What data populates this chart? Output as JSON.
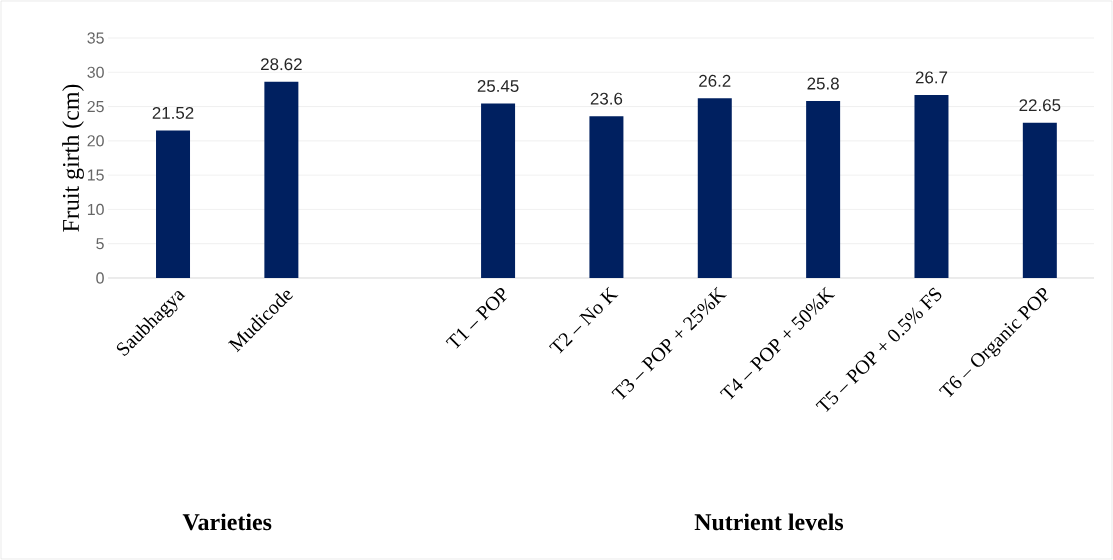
{
  "chart_data": {
    "type": "bar",
    "ylabel": "Fruit girth (cm)",
    "categories": [
      "Saubhagya",
      "Mudicode",
      null,
      "T1 – POP",
      "T2 – No K",
      "T3 – POP + 25%K",
      "T4 – POP + 50%K",
      "T5 – POP + 0.5% FS",
      "T6 – Organic POP"
    ],
    "values": [
      21.52,
      28.62,
      null,
      25.45,
      23.6,
      26.2,
      25.8,
      26.7,
      22.65
    ],
    "color": "#002060",
    "ylim": [
      0,
      35
    ],
    "yticks": [
      0,
      5,
      10,
      15,
      20,
      25,
      30,
      35
    ],
    "grid": "y",
    "data_labels": true,
    "annotations": [
      "Varieties",
      "Nutrient levels"
    ]
  }
}
